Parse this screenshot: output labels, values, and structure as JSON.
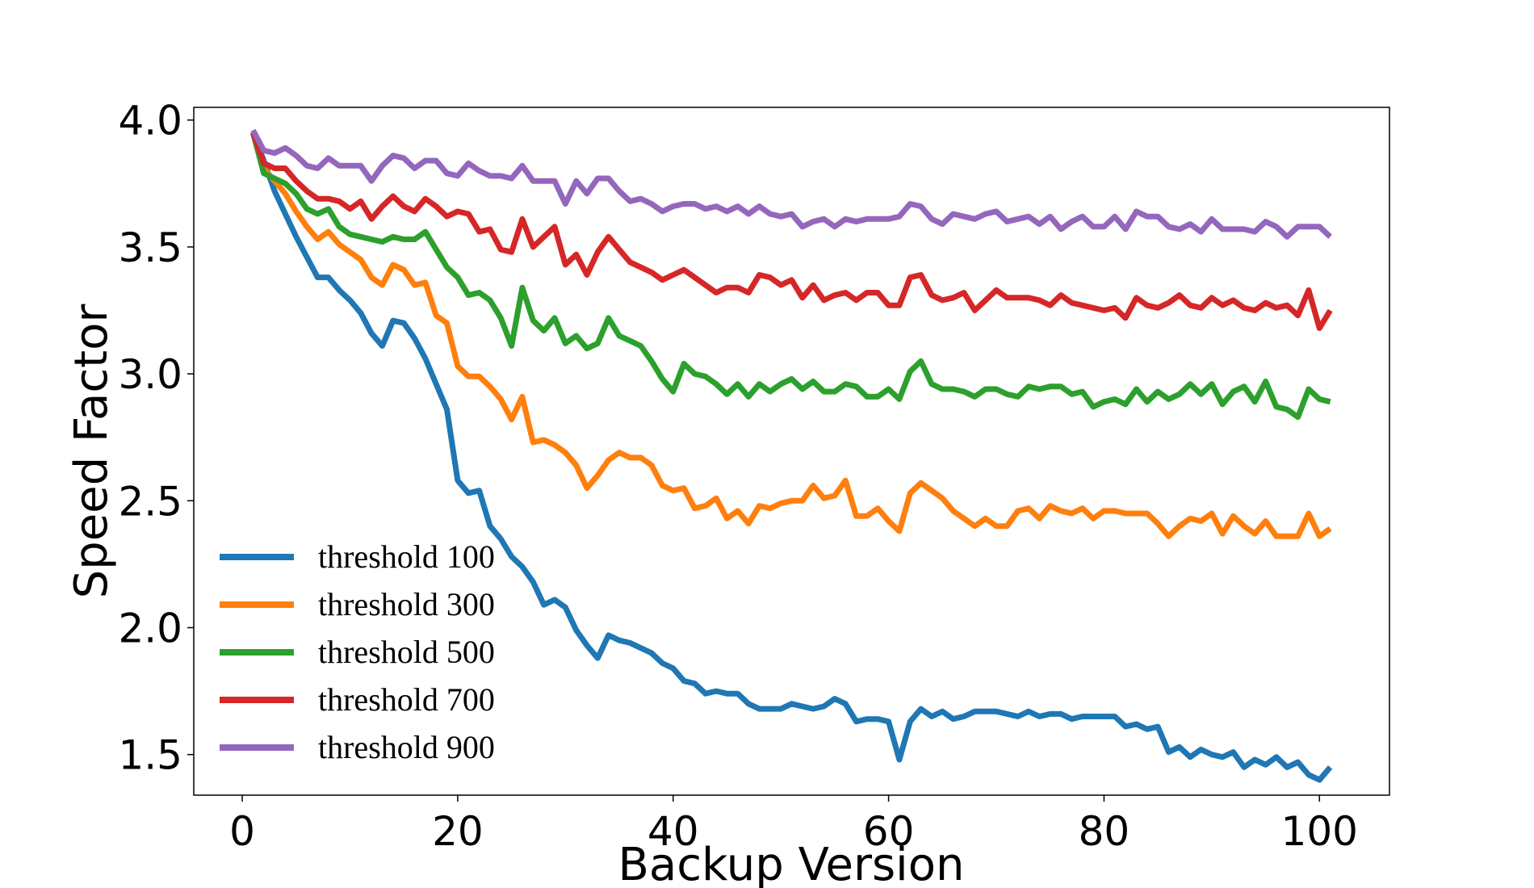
{
  "chart_data": {
    "type": "line",
    "title": "",
    "xlabel": "Backup Version",
    "ylabel": "Speed Factor",
    "xlim": [
      -4.5,
      106.5
    ],
    "ylim": [
      1.34,
      4.05
    ],
    "xticks": [
      0,
      20,
      40,
      60,
      80,
      100
    ],
    "yticks": [
      1.5,
      2.0,
      2.5,
      3.0,
      3.5,
      4.0
    ],
    "xtick_labels": [
      "0",
      "20",
      "40",
      "60",
      "80",
      "100"
    ],
    "ytick_labels": [
      "1.5",
      "2.0",
      "2.5",
      "3.0",
      "3.5",
      "4.0"
    ],
    "grid": false,
    "legend_position": "lower-left",
    "x": [
      1,
      2,
      3,
      4,
      5,
      6,
      7,
      8,
      9,
      10,
      11,
      12,
      13,
      14,
      15,
      16,
      17,
      18,
      19,
      20,
      21,
      22,
      23,
      24,
      25,
      26,
      27,
      28,
      29,
      30,
      31,
      32,
      33,
      34,
      35,
      36,
      37,
      38,
      39,
      40,
      41,
      42,
      43,
      44,
      45,
      46,
      47,
      48,
      49,
      50,
      51,
      52,
      53,
      54,
      55,
      56,
      57,
      58,
      59,
      60,
      61,
      62,
      63,
      64,
      65,
      66,
      67,
      68,
      69,
      70,
      71,
      72,
      73,
      74,
      75,
      76,
      77,
      78,
      79,
      80,
      81,
      82,
      83,
      84,
      85,
      86,
      87,
      88,
      89,
      90,
      91,
      92,
      93,
      94,
      95,
      96,
      97,
      98,
      99,
      100,
      101
    ],
    "series": [
      {
        "name": "threshold 100",
        "color": "#1f77b4",
        "values": [
          3.95,
          3.84,
          3.72,
          3.63,
          3.54,
          3.46,
          3.38,
          3.38,
          3.33,
          3.29,
          3.24,
          3.16,
          3.11,
          3.21,
          3.2,
          3.14,
          3.06,
          2.96,
          2.86,
          2.58,
          2.53,
          2.54,
          2.4,
          2.35,
          2.28,
          2.24,
          2.18,
          2.09,
          2.11,
          2.08,
          1.99,
          1.93,
          1.88,
          1.97,
          1.95,
          1.94,
          1.92,
          1.9,
          1.86,
          1.84,
          1.79,
          1.78,
          1.74,
          1.75,
          1.74,
          1.74,
          1.7,
          1.68,
          1.68,
          1.68,
          1.7,
          1.69,
          1.68,
          1.69,
          1.72,
          1.7,
          1.63,
          1.64,
          1.64,
          1.63,
          1.48,
          1.63,
          1.68,
          1.65,
          1.67,
          1.64,
          1.65,
          1.67,
          1.67,
          1.67,
          1.66,
          1.65,
          1.67,
          1.65,
          1.66,
          1.66,
          1.64,
          1.65,
          1.65,
          1.65,
          1.65,
          1.61,
          1.62,
          1.6,
          1.61,
          1.51,
          1.53,
          1.49,
          1.52,
          1.5,
          1.49,
          1.51,
          1.45,
          1.48,
          1.46,
          1.49,
          1.45,
          1.47,
          1.42,
          1.4,
          1.45
        ]
      },
      {
        "name": "threshold 300",
        "color": "#ff7f0e",
        "values": [
          3.95,
          3.81,
          3.76,
          3.71,
          3.64,
          3.58,
          3.53,
          3.56,
          3.51,
          3.48,
          3.45,
          3.38,
          3.35,
          3.43,
          3.41,
          3.35,
          3.36,
          3.23,
          3.2,
          3.03,
          2.99,
          2.99,
          2.95,
          2.9,
          2.82,
          2.91,
          2.73,
          2.74,
          2.72,
          2.69,
          2.64,
          2.55,
          2.6,
          2.66,
          2.69,
          2.67,
          2.67,
          2.64,
          2.56,
          2.54,
          2.55,
          2.47,
          2.48,
          2.51,
          2.43,
          2.46,
          2.41,
          2.48,
          2.47,
          2.49,
          2.5,
          2.5,
          2.56,
          2.51,
          2.52,
          2.58,
          2.44,
          2.44,
          2.47,
          2.42,
          2.38,
          2.53,
          2.57,
          2.54,
          2.51,
          2.46,
          2.43,
          2.4,
          2.43,
          2.4,
          2.4,
          2.46,
          2.47,
          2.43,
          2.48,
          2.46,
          2.45,
          2.47,
          2.43,
          2.46,
          2.46,
          2.45,
          2.45,
          2.45,
          2.41,
          2.36,
          2.4,
          2.43,
          2.42,
          2.45,
          2.37,
          2.44,
          2.4,
          2.37,
          2.42,
          2.36,
          2.36,
          2.36,
          2.45,
          2.36,
          2.39
        ]
      },
      {
        "name": "threshold 500",
        "color": "#2ca02c",
        "values": [
          3.95,
          3.79,
          3.77,
          3.75,
          3.71,
          3.65,
          3.63,
          3.65,
          3.58,
          3.55,
          3.54,
          3.53,
          3.52,
          3.54,
          3.53,
          3.53,
          3.56,
          3.49,
          3.42,
          3.38,
          3.31,
          3.32,
          3.29,
          3.22,
          3.11,
          3.34,
          3.21,
          3.17,
          3.22,
          3.12,
          3.15,
          3.1,
          3.12,
          3.22,
          3.15,
          3.13,
          3.11,
          3.05,
          2.98,
          2.93,
          3.04,
          3.0,
          2.99,
          2.96,
          2.92,
          2.96,
          2.91,
          2.96,
          2.93,
          2.96,
          2.98,
          2.94,
          2.97,
          2.93,
          2.93,
          2.96,
          2.95,
          2.91,
          2.91,
          2.94,
          2.9,
          3.01,
          3.05,
          2.96,
          2.94,
          2.94,
          2.93,
          2.91,
          2.94,
          2.94,
          2.92,
          2.91,
          2.95,
          2.94,
          2.95,
          2.95,
          2.92,
          2.93,
          2.87,
          2.89,
          2.9,
          2.88,
          2.94,
          2.89,
          2.93,
          2.9,
          2.92,
          2.96,
          2.92,
          2.96,
          2.88,
          2.93,
          2.95,
          2.89,
          2.97,
          2.87,
          2.86,
          2.83,
          2.94,
          2.9,
          2.89
        ]
      },
      {
        "name": "threshold 700",
        "color": "#d62728",
        "values": [
          3.95,
          3.83,
          3.81,
          3.81,
          3.76,
          3.72,
          3.69,
          3.69,
          3.68,
          3.65,
          3.68,
          3.61,
          3.66,
          3.7,
          3.66,
          3.64,
          3.69,
          3.66,
          3.62,
          3.64,
          3.63,
          3.56,
          3.57,
          3.49,
          3.48,
          3.61,
          3.5,
          3.54,
          3.58,
          3.43,
          3.47,
          3.39,
          3.48,
          3.54,
          3.49,
          3.44,
          3.42,
          3.4,
          3.37,
          3.39,
          3.41,
          3.38,
          3.35,
          3.32,
          3.34,
          3.34,
          3.32,
          3.39,
          3.38,
          3.35,
          3.37,
          3.3,
          3.35,
          3.29,
          3.31,
          3.32,
          3.29,
          3.32,
          3.32,
          3.27,
          3.27,
          3.38,
          3.39,
          3.31,
          3.29,
          3.3,
          3.32,
          3.25,
          3.29,
          3.33,
          3.3,
          3.3,
          3.3,
          3.29,
          3.27,
          3.31,
          3.28,
          3.27,
          3.26,
          3.25,
          3.26,
          3.22,
          3.3,
          3.27,
          3.26,
          3.28,
          3.31,
          3.27,
          3.26,
          3.3,
          3.27,
          3.29,
          3.26,
          3.25,
          3.28,
          3.26,
          3.27,
          3.23,
          3.33,
          3.18,
          3.25
        ]
      },
      {
        "name": "threshold 900",
        "color": "#9467bd",
        "values": [
          3.96,
          3.88,
          3.87,
          3.89,
          3.86,
          3.82,
          3.81,
          3.85,
          3.82,
          3.82,
          3.82,
          3.76,
          3.82,
          3.86,
          3.85,
          3.81,
          3.84,
          3.84,
          3.79,
          3.78,
          3.83,
          3.8,
          3.78,
          3.78,
          3.77,
          3.82,
          3.76,
          3.76,
          3.76,
          3.67,
          3.76,
          3.71,
          3.77,
          3.77,
          3.72,
          3.68,
          3.69,
          3.67,
          3.64,
          3.66,
          3.67,
          3.67,
          3.65,
          3.66,
          3.64,
          3.66,
          3.63,
          3.66,
          3.63,
          3.62,
          3.63,
          3.58,
          3.6,
          3.61,
          3.58,
          3.61,
          3.6,
          3.61,
          3.61,
          3.61,
          3.62,
          3.67,
          3.66,
          3.61,
          3.59,
          3.63,
          3.62,
          3.61,
          3.63,
          3.64,
          3.6,
          3.61,
          3.62,
          3.59,
          3.62,
          3.57,
          3.6,
          3.62,
          3.58,
          3.58,
          3.62,
          3.57,
          3.64,
          3.62,
          3.62,
          3.58,
          3.57,
          3.59,
          3.56,
          3.61,
          3.57,
          3.57,
          3.57,
          3.56,
          3.6,
          3.58,
          3.54,
          3.58,
          3.58,
          3.58,
          3.54
        ]
      }
    ]
  }
}
